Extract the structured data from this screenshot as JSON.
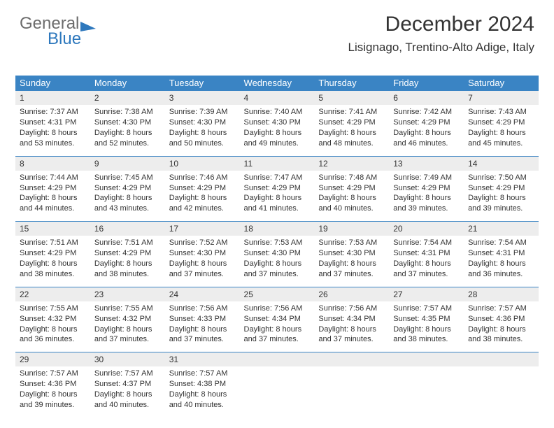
{
  "logo": {
    "word1": "General",
    "word2": "Blue"
  },
  "header": {
    "title": "December 2024",
    "subtitle": "Lisignago, Trentino-Alto Adige, Italy"
  },
  "colors": {
    "header_bg": "#3a84c4",
    "header_text": "#ffffff",
    "daynum_bg": "#ededed",
    "rule": "#3a84c4",
    "body_text": "#333333",
    "logo_gray": "#6c6c6c",
    "logo_blue": "#2e78bd"
  },
  "weekdays": [
    "Sunday",
    "Monday",
    "Tuesday",
    "Wednesday",
    "Thursday",
    "Friday",
    "Saturday"
  ],
  "weeks": [
    {
      "days": [
        {
          "n": "1",
          "sr": "Sunrise: 7:37 AM",
          "ss": "Sunset: 4:31 PM",
          "d1": "Daylight: 8 hours",
          "d2": "and 53 minutes."
        },
        {
          "n": "2",
          "sr": "Sunrise: 7:38 AM",
          "ss": "Sunset: 4:30 PM",
          "d1": "Daylight: 8 hours",
          "d2": "and 52 minutes."
        },
        {
          "n": "3",
          "sr": "Sunrise: 7:39 AM",
          "ss": "Sunset: 4:30 PM",
          "d1": "Daylight: 8 hours",
          "d2": "and 50 minutes."
        },
        {
          "n": "4",
          "sr": "Sunrise: 7:40 AM",
          "ss": "Sunset: 4:30 PM",
          "d1": "Daylight: 8 hours",
          "d2": "and 49 minutes."
        },
        {
          "n": "5",
          "sr": "Sunrise: 7:41 AM",
          "ss": "Sunset: 4:29 PM",
          "d1": "Daylight: 8 hours",
          "d2": "and 48 minutes."
        },
        {
          "n": "6",
          "sr": "Sunrise: 7:42 AM",
          "ss": "Sunset: 4:29 PM",
          "d1": "Daylight: 8 hours",
          "d2": "and 46 minutes."
        },
        {
          "n": "7",
          "sr": "Sunrise: 7:43 AM",
          "ss": "Sunset: 4:29 PM",
          "d1": "Daylight: 8 hours",
          "d2": "and 45 minutes."
        }
      ]
    },
    {
      "days": [
        {
          "n": "8",
          "sr": "Sunrise: 7:44 AM",
          "ss": "Sunset: 4:29 PM",
          "d1": "Daylight: 8 hours",
          "d2": "and 44 minutes."
        },
        {
          "n": "9",
          "sr": "Sunrise: 7:45 AM",
          "ss": "Sunset: 4:29 PM",
          "d1": "Daylight: 8 hours",
          "d2": "and 43 minutes."
        },
        {
          "n": "10",
          "sr": "Sunrise: 7:46 AM",
          "ss": "Sunset: 4:29 PM",
          "d1": "Daylight: 8 hours",
          "d2": "and 42 minutes."
        },
        {
          "n": "11",
          "sr": "Sunrise: 7:47 AM",
          "ss": "Sunset: 4:29 PM",
          "d1": "Daylight: 8 hours",
          "d2": "and 41 minutes."
        },
        {
          "n": "12",
          "sr": "Sunrise: 7:48 AM",
          "ss": "Sunset: 4:29 PM",
          "d1": "Daylight: 8 hours",
          "d2": "and 40 minutes."
        },
        {
          "n": "13",
          "sr": "Sunrise: 7:49 AM",
          "ss": "Sunset: 4:29 PM",
          "d1": "Daylight: 8 hours",
          "d2": "and 39 minutes."
        },
        {
          "n": "14",
          "sr": "Sunrise: 7:50 AM",
          "ss": "Sunset: 4:29 PM",
          "d1": "Daylight: 8 hours",
          "d2": "and 39 minutes."
        }
      ]
    },
    {
      "days": [
        {
          "n": "15",
          "sr": "Sunrise: 7:51 AM",
          "ss": "Sunset: 4:29 PM",
          "d1": "Daylight: 8 hours",
          "d2": "and 38 minutes."
        },
        {
          "n": "16",
          "sr": "Sunrise: 7:51 AM",
          "ss": "Sunset: 4:29 PM",
          "d1": "Daylight: 8 hours",
          "d2": "and 38 minutes."
        },
        {
          "n": "17",
          "sr": "Sunrise: 7:52 AM",
          "ss": "Sunset: 4:30 PM",
          "d1": "Daylight: 8 hours",
          "d2": "and 37 minutes."
        },
        {
          "n": "18",
          "sr": "Sunrise: 7:53 AM",
          "ss": "Sunset: 4:30 PM",
          "d1": "Daylight: 8 hours",
          "d2": "and 37 minutes."
        },
        {
          "n": "19",
          "sr": "Sunrise: 7:53 AM",
          "ss": "Sunset: 4:30 PM",
          "d1": "Daylight: 8 hours",
          "d2": "and 37 minutes."
        },
        {
          "n": "20",
          "sr": "Sunrise: 7:54 AM",
          "ss": "Sunset: 4:31 PM",
          "d1": "Daylight: 8 hours",
          "d2": "and 37 minutes."
        },
        {
          "n": "21",
          "sr": "Sunrise: 7:54 AM",
          "ss": "Sunset: 4:31 PM",
          "d1": "Daylight: 8 hours",
          "d2": "and 36 minutes."
        }
      ]
    },
    {
      "days": [
        {
          "n": "22",
          "sr": "Sunrise: 7:55 AM",
          "ss": "Sunset: 4:32 PM",
          "d1": "Daylight: 8 hours",
          "d2": "and 36 minutes."
        },
        {
          "n": "23",
          "sr": "Sunrise: 7:55 AM",
          "ss": "Sunset: 4:32 PM",
          "d1": "Daylight: 8 hours",
          "d2": "and 37 minutes."
        },
        {
          "n": "24",
          "sr": "Sunrise: 7:56 AM",
          "ss": "Sunset: 4:33 PM",
          "d1": "Daylight: 8 hours",
          "d2": "and 37 minutes."
        },
        {
          "n": "25",
          "sr": "Sunrise: 7:56 AM",
          "ss": "Sunset: 4:34 PM",
          "d1": "Daylight: 8 hours",
          "d2": "and 37 minutes."
        },
        {
          "n": "26",
          "sr": "Sunrise: 7:56 AM",
          "ss": "Sunset: 4:34 PM",
          "d1": "Daylight: 8 hours",
          "d2": "and 37 minutes."
        },
        {
          "n": "27",
          "sr": "Sunrise: 7:57 AM",
          "ss": "Sunset: 4:35 PM",
          "d1": "Daylight: 8 hours",
          "d2": "and 38 minutes."
        },
        {
          "n": "28",
          "sr": "Sunrise: 7:57 AM",
          "ss": "Sunset: 4:36 PM",
          "d1": "Daylight: 8 hours",
          "d2": "and 38 minutes."
        }
      ]
    },
    {
      "days": [
        {
          "n": "29",
          "sr": "Sunrise: 7:57 AM",
          "ss": "Sunset: 4:36 PM",
          "d1": "Daylight: 8 hours",
          "d2": "and 39 minutes."
        },
        {
          "n": "30",
          "sr": "Sunrise: 7:57 AM",
          "ss": "Sunset: 4:37 PM",
          "d1": "Daylight: 8 hours",
          "d2": "and 40 minutes."
        },
        {
          "n": "31",
          "sr": "Sunrise: 7:57 AM",
          "ss": "Sunset: 4:38 PM",
          "d1": "Daylight: 8 hours",
          "d2": "and 40 minutes."
        },
        {
          "blank": true
        },
        {
          "blank": true
        },
        {
          "blank": true
        },
        {
          "blank": true
        }
      ]
    }
  ]
}
